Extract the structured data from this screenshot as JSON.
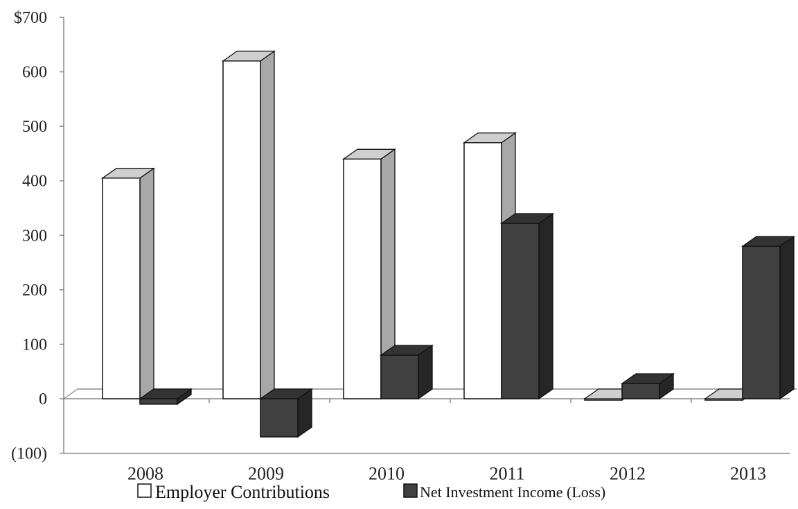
{
  "chart_data": {
    "type": "bar",
    "categories": [
      "2008",
      "2009",
      "2010",
      "2011",
      "2012",
      "2013"
    ],
    "series": [
      {
        "name": "Employer Contributions",
        "values": [
          405,
          620,
          440,
          470,
          0,
          0
        ]
      },
      {
        "name": "Net Investment Income (Loss)",
        "values": [
          -10,
          -70,
          80,
          322,
          28,
          280
        ]
      }
    ],
    "y_tick_labels": [
      {
        "value": 700,
        "label": "$700"
      },
      {
        "value": 600,
        "label": "600"
      },
      {
        "value": 500,
        "label": "500"
      },
      {
        "value": 400,
        "label": "400"
      },
      {
        "value": 300,
        "label": "300"
      },
      {
        "value": 200,
        "label": "200"
      },
      {
        "value": 100,
        "label": "100"
      },
      {
        "value": 0,
        "label": "0"
      },
      {
        "value": -100,
        "label": "(100)"
      }
    ],
    "ylim": [
      -100,
      700
    ],
    "style": "3d-columns",
    "grid": false,
    "legend_position": "bottom",
    "colors": {
      "Employer Contributions": {
        "front": "#ffffff",
        "side": "#a8a8a8",
        "top": "#cfcfcf"
      },
      "Net Investment Income (Loss)": {
        "front": "#404040",
        "side": "#262626",
        "top": "#333333"
      }
    }
  }
}
